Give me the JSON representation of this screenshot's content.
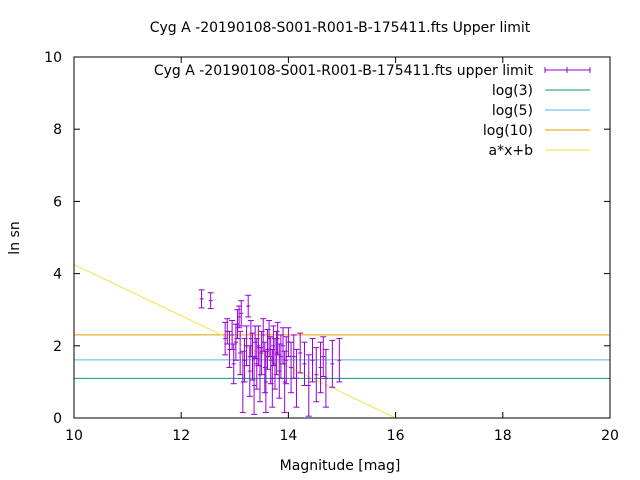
{
  "chart_data": {
    "type": "scatter",
    "title": "Cyg A -20190108-S001-R001-B-175411.fts Upper limit",
    "xlabel": "Magnitude [mag]",
    "ylabel": "ln sn",
    "xlim": [
      10,
      20
    ],
    "ylim": [
      0,
      10
    ],
    "xticks": [
      "10",
      "12",
      "14",
      "16",
      "18",
      "20"
    ],
    "yticks": [
      "0",
      "2",
      "4",
      "6",
      "8",
      "10"
    ],
    "grid": false,
    "legend_position": "top-right",
    "series": [
      {
        "name": "Cyg A -20190108-S001-R001-B-175411.fts upper limit",
        "kind": "errorbars",
        "color": "#9400d3",
        "points": [
          {
            "x": 12.38,
            "y": 3.3,
            "e": 0.25
          },
          {
            "x": 12.55,
            "y": 3.25,
            "e": 0.22
          },
          {
            "x": 12.82,
            "y": 2.2,
            "e": 0.45
          },
          {
            "x": 12.86,
            "y": 2.4,
            "e": 0.35
          },
          {
            "x": 12.9,
            "y": 1.9,
            "e": 0.5
          },
          {
            "x": 12.95,
            "y": 2.3,
            "e": 0.4
          },
          {
            "x": 12.98,
            "y": 1.5,
            "e": 0.55
          },
          {
            "x": 13.02,
            "y": 2.1,
            "e": 0.5
          },
          {
            "x": 13.05,
            "y": 2.6,
            "e": 0.4
          },
          {
            "x": 13.08,
            "y": 2.8,
            "e": 0.3
          },
          {
            "x": 13.1,
            "y": 1.8,
            "e": 0.6
          },
          {
            "x": 13.12,
            "y": 2.9,
            "e": 0.35
          },
          {
            "x": 13.15,
            "y": 1.0,
            "e": 0.85
          },
          {
            "x": 13.18,
            "y": 1.6,
            "e": 0.6
          },
          {
            "x": 13.22,
            "y": 2.0,
            "e": 0.55
          },
          {
            "x": 13.25,
            "y": 3.1,
            "e": 0.3
          },
          {
            "x": 13.28,
            "y": 1.3,
            "e": 0.7
          },
          {
            "x": 13.3,
            "y": 2.2,
            "e": 0.5
          },
          {
            "x": 13.33,
            "y": 1.7,
            "e": 0.65
          },
          {
            "x": 13.36,
            "y": 0.9,
            "e": 0.8
          },
          {
            "x": 13.38,
            "y": 2.1,
            "e": 0.45
          },
          {
            "x": 13.41,
            "y": 1.5,
            "e": 0.7
          },
          {
            "x": 13.44,
            "y": 2.0,
            "e": 0.55
          },
          {
            "x": 13.47,
            "y": 1.2,
            "e": 0.75
          },
          {
            "x": 13.5,
            "y": 1.8,
            "e": 0.6
          },
          {
            "x": 13.53,
            "y": 2.3,
            "e": 0.45
          },
          {
            "x": 13.56,
            "y": 1.4,
            "e": 0.7
          },
          {
            "x": 13.58,
            "y": 1.0,
            "e": 0.85
          },
          {
            "x": 13.61,
            "y": 1.9,
            "e": 0.55
          },
          {
            "x": 13.64,
            "y": 2.2,
            "e": 0.5
          },
          {
            "x": 13.67,
            "y": 1.6,
            "e": 0.65
          },
          {
            "x": 13.7,
            "y": 1.1,
            "e": 0.8
          },
          {
            "x": 13.72,
            "y": 2.0,
            "e": 0.55
          },
          {
            "x": 13.75,
            "y": 1.5,
            "e": 0.7
          },
          {
            "x": 13.78,
            "y": 1.8,
            "e": 0.6
          },
          {
            "x": 13.8,
            "y": 2.2,
            "e": 0.45
          },
          {
            "x": 13.83,
            "y": 1.3,
            "e": 0.75
          },
          {
            "x": 13.86,
            "y": 1.7,
            "e": 0.6
          },
          {
            "x": 13.9,
            "y": 2.0,
            "e": 0.5
          },
          {
            "x": 13.93,
            "y": 1.0,
            "e": 0.85
          },
          {
            "x": 13.96,
            "y": 1.6,
            "e": 0.65
          },
          {
            "x": 14.0,
            "y": 2.1,
            "e": 0.4
          },
          {
            "x": 14.05,
            "y": 1.4,
            "e": 0.7
          },
          {
            "x": 14.1,
            "y": 1.7,
            "e": 0.6
          },
          {
            "x": 14.15,
            "y": 1.1,
            "e": 0.8
          },
          {
            "x": 14.22,
            "y": 1.8,
            "e": 0.55
          },
          {
            "x": 14.3,
            "y": 1.5,
            "e": 0.6
          },
          {
            "x": 14.38,
            "y": 0.9,
            "e": 0.85
          },
          {
            "x": 14.45,
            "y": 1.6,
            "e": 0.6
          },
          {
            "x": 14.52,
            "y": 1.2,
            "e": 0.75
          },
          {
            "x": 14.6,
            "y": 1.4,
            "e": 0.7
          },
          {
            "x": 14.65,
            "y": 1.7,
            "e": 0.55
          },
          {
            "x": 14.7,
            "y": 1.1,
            "e": 0.8
          },
          {
            "x": 14.82,
            "y": 1.5,
            "e": 0.65
          },
          {
            "x": 14.95,
            "y": 1.6,
            "e": 0.6
          }
        ]
      },
      {
        "name": "log(3)",
        "kind": "hline",
        "y": 1.0986,
        "color": "#009e73"
      },
      {
        "name": "log(5)",
        "kind": "hline",
        "y": 1.6094,
        "color": "#56b4e9"
      },
      {
        "name": "log(10)",
        "kind": "hline",
        "y": 2.3026,
        "color": "#e69f00"
      },
      {
        "name": "a*x+b",
        "kind": "line",
        "x": [
          10,
          16
        ],
        "y": [
          4.25,
          0
        ],
        "color": "#f0e442"
      }
    ]
  }
}
